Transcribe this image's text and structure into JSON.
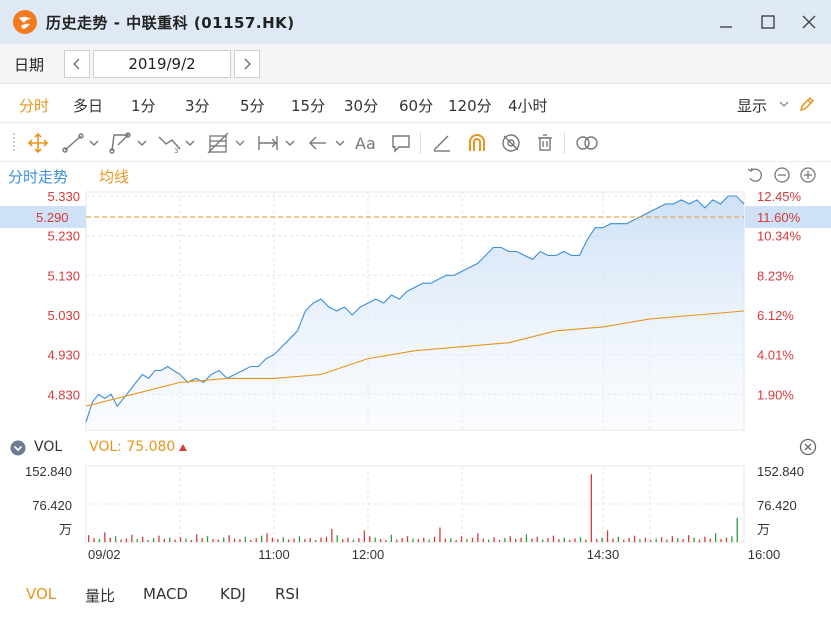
{
  "window": {
    "title": "历史走势 - 中联重科 (01157.HK)"
  },
  "date_bar": {
    "label": "日期",
    "value": "2019/9/2"
  },
  "periods": [
    "分时",
    "多日",
    "1分",
    "3分",
    "5分",
    "15分",
    "30分",
    "60分",
    "120分",
    "4小时"
  ],
  "active_period": "分时",
  "display_label": "显示",
  "toolbar_icons": [
    "move-icon",
    "line-icon",
    "polyline-icon",
    "wave-icon",
    "fibonacci-icon",
    "range-icon",
    "arrow-icon",
    "text-icon",
    "comment-icon",
    "eraser-icon",
    "magnet-icon",
    "hide-icon",
    "trash-icon",
    "link-icon"
  ],
  "chart_tabs": {
    "intraday": "分时走势",
    "average": "均线"
  },
  "colors": {
    "accent": "#e8951c",
    "price_line": "#3b8fd8",
    "avg_line": "#e8951c",
    "up": "#d63a3a",
    "down": "#2b9d3a",
    "label_red": "#d63a3a"
  },
  "cursor": {
    "price": "5.290",
    "pct": "11.60%"
  },
  "vol_header": {
    "label": "VOL",
    "value": "VOL: 75.080"
  },
  "chart_data": [
    {
      "type": "line",
      "title": "",
      "y_axis_left": [
        "5.330",
        "5.230",
        "5.130",
        "5.030",
        "4.930",
        "4.830"
      ],
      "y_axis_right": [
        "12.45%",
        "10.34%",
        "8.23%",
        "6.12%",
        "4.01%",
        "1.90%"
      ],
      "ylim": [
        4.74,
        5.34
      ],
      "x_range": [
        "09:00",
        "16:00"
      ],
      "series": [
        {
          "x": [
            "09:00",
            "09:04",
            "09:08",
            "09:12",
            "09:16",
            "09:20",
            "09:24",
            "09:28",
            "09:32",
            "09:36",
            "09:40",
            "09:44",
            "09:48",
            "09:52",
            "09:56",
            "10:00",
            "10:05",
            "10:10",
            "10:15",
            "10:20",
            "10:25",
            "10:30",
            "10:35",
            "10:40",
            "10:45",
            "10:50",
            "10:55",
            "11:00",
            "11:05",
            "11:10",
            "11:15",
            "11:20",
            "11:25",
            "11:30",
            "11:35",
            "11:40",
            "11:45",
            "11:50",
            "11:55",
            "12:00",
            "12:05",
            "12:10",
            "12:15",
            "12:20",
            "12:25",
            "12:30",
            "12:35",
            "12:40",
            "12:45",
            "12:50",
            "12:55",
            "13:00",
            "13:05",
            "13:10",
            "13:15",
            "13:20",
            "13:25",
            "13:30",
            "13:35",
            "13:40",
            "13:45",
            "13:50",
            "13:55",
            "14:00",
            "14:05",
            "14:10",
            "14:15",
            "14:20",
            "14:25",
            "14:30",
            "14:35",
            "14:40",
            "14:45",
            "14:50",
            "14:55",
            "15:00",
            "15:05",
            "15:10",
            "15:15",
            "15:20",
            "15:25",
            "15:30",
            "15:35",
            "15:40",
            "15:45",
            "15:50",
            "15:55",
            "16:00"
          ],
          "values": [
            4.76,
            4.81,
            4.83,
            4.82,
            4.83,
            4.8,
            4.82,
            4.84,
            4.86,
            4.88,
            4.87,
            4.89,
            4.89,
            4.9,
            4.89,
            4.88,
            4.86,
            4.87,
            4.86,
            4.88,
            4.89,
            4.87,
            4.88,
            4.89,
            4.9,
            4.9,
            4.92,
            4.93,
            4.95,
            4.97,
            4.99,
            5.04,
            5.06,
            5.07,
            5.05,
            5.04,
            5.05,
            5.03,
            5.05,
            5.06,
            5.07,
            5.06,
            5.08,
            5.07,
            5.09,
            5.1,
            5.11,
            5.11,
            5.12,
            5.13,
            5.13,
            5.14,
            5.15,
            5.16,
            5.18,
            5.2,
            5.2,
            5.19,
            5.19,
            5.18,
            5.17,
            5.19,
            5.18,
            5.18,
            5.19,
            5.18,
            5.18,
            5.22,
            5.25,
            5.25,
            5.26,
            5.26,
            5.26,
            5.27,
            5.28,
            5.29,
            5.3,
            5.31,
            5.31,
            5.32,
            5.31,
            5.32,
            5.3,
            5.32,
            5.31,
            5.33,
            5.33,
            5.31
          ]
        },
        {
          "x": [
            "09:00",
            "09:30",
            "10:00",
            "10:30",
            "11:00",
            "11:30",
            "12:00",
            "12:30",
            "13:00",
            "13:30",
            "14:00",
            "14:30",
            "15:00",
            "15:30",
            "16:00"
          ],
          "values": [
            4.8,
            4.83,
            4.86,
            4.87,
            4.87,
            4.88,
            4.92,
            4.94,
            4.95,
            4.96,
            4.99,
            5.0,
            5.02,
            5.03,
            5.04
          ]
        }
      ]
    },
    {
      "type": "bar",
      "title": "VOL",
      "y_axis_labels": [
        "152.840",
        "76.420",
        "万"
      ],
      "ylim": [
        0,
        152.84
      ],
      "x_labels": [
        "09/02",
        "11:00",
        "12:00",
        "14:30",
        "16:00"
      ],
      "values": [
        14,
        8,
        6,
        20,
        9,
        12,
        5,
        7,
        15,
        6,
        11,
        4,
        8,
        13,
        6,
        9,
        5,
        10,
        7,
        4,
        16,
        8,
        12,
        6,
        5,
        9,
        14,
        7,
        6,
        11,
        4,
        8,
        13,
        18,
        9,
        6,
        10,
        5,
        7,
        12,
        6,
        8,
        4,
        9,
        11,
        27,
        14,
        6,
        9,
        5,
        8,
        24,
        12,
        9,
        6,
        4,
        15,
        5,
        8,
        12,
        7,
        6,
        9,
        5,
        11,
        30,
        7,
        8,
        4,
        12,
        6,
        9,
        18,
        7,
        5,
        10,
        4,
        8,
        12,
        6,
        9,
        16,
        7,
        11,
        5,
        8,
        13,
        6,
        9,
        4,
        7,
        10,
        5,
        140,
        6,
        9,
        24,
        7,
        11,
        5,
        8,
        13,
        6,
        9,
        4,
        7,
        10,
        5,
        12,
        8,
        6,
        14,
        9,
        5,
        11,
        7,
        18,
        6,
        9,
        12,
        50
      ],
      "colors": [
        "r",
        "r",
        "g",
        "r",
        "r",
        "g",
        "r",
        "r",
        "r",
        "g",
        "r",
        "r",
        "g",
        "r",
        "r",
        "g",
        "r",
        "r",
        "g",
        "r",
        "r",
        "r",
        "g",
        "r",
        "r",
        "g",
        "r",
        "r",
        "r",
        "g",
        "r",
        "r",
        "g",
        "r",
        "r",
        "r",
        "g",
        "r",
        "r",
        "g",
        "r",
        "r",
        "g",
        "r",
        "r",
        "r",
        "g",
        "r",
        "r",
        "g",
        "r",
        "r",
        "r",
        "g",
        "r",
        "r",
        "g",
        "r",
        "r",
        "r",
        "g",
        "r",
        "r",
        "g",
        "r",
        "r",
        "r",
        "g",
        "r",
        "r",
        "g",
        "r",
        "r",
        "r",
        "g",
        "r",
        "r",
        "g",
        "r",
        "r",
        "r",
        "g",
        "r",
        "r",
        "g",
        "r",
        "r",
        "r",
        "g",
        "r",
        "r",
        "g",
        "r",
        "r",
        "r",
        "g",
        "r",
        "r",
        "g",
        "r",
        "r",
        "r",
        "g",
        "r",
        "r",
        "g",
        "r",
        "r",
        "r",
        "g",
        "r",
        "r",
        "g",
        "r",
        "r",
        "r",
        "g",
        "r",
        "r",
        "g",
        "g"
      ]
    }
  ],
  "indicator_tabs": [
    "VOL",
    "量比",
    "MACD",
    "KDJ",
    "RSI"
  ],
  "active_indicator": "VOL"
}
